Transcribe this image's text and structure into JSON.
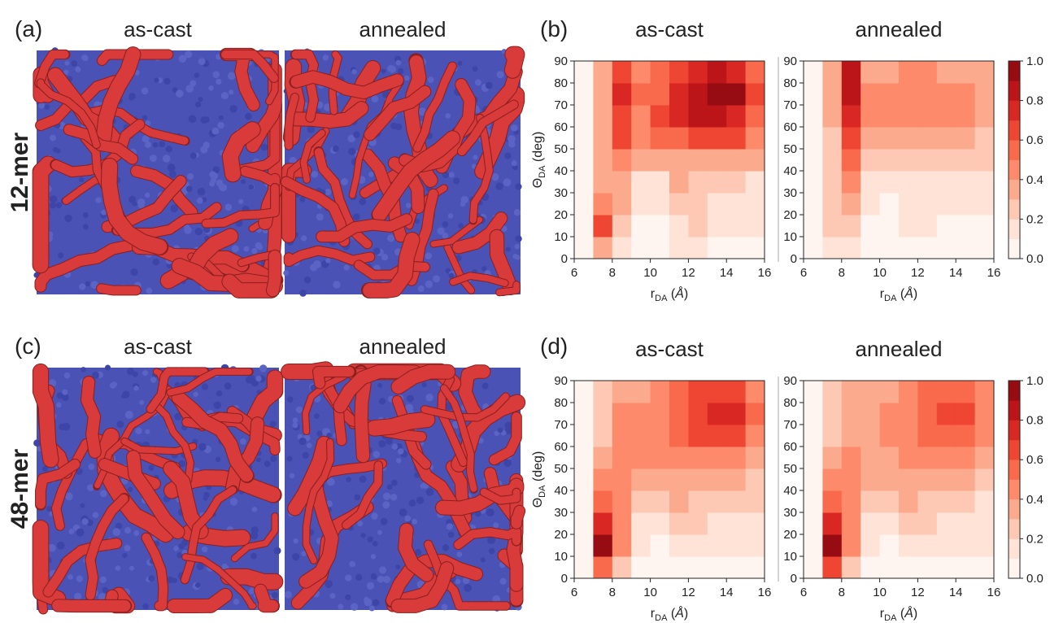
{
  "figure": {
    "panels": [
      {
        "label": "(a)",
        "row_label": "12-mer",
        "titles": [
          "as-cast",
          "annealed"
        ]
      },
      {
        "label": "(c)",
        "row_label": "48-mer",
        "titles": [
          "as-cast",
          "annealed"
        ]
      }
    ],
    "plot_labels": [
      "(b)",
      "(d)"
    ]
  },
  "chart_data": [
    {
      "type": "contour",
      "title": "as-cast",
      "xlabel": {
        "symbol": "r",
        "subscript": "DA",
        "unit": "Å"
      },
      "ylabel": {
        "symbol": "Θ",
        "subscript": "DA",
        "unit": "(deg)"
      },
      "x": [
        6.5,
        7.5,
        8.5,
        9.5,
        10.5,
        11.5,
        12.5,
        13.5,
        14.5,
        15.5
      ],
      "y": [
        5,
        15,
        25,
        35,
        45,
        55,
        65,
        75,
        85
      ],
      "z": [
        [
          0,
          0.3,
          0.1,
          0,
          0,
          0.1,
          0.1,
          0.05,
          0.05,
          0.05
        ],
        [
          0.05,
          0.6,
          0.2,
          0.05,
          0.05,
          0.15,
          0.2,
          0.1,
          0.1,
          0.1
        ],
        [
          0.05,
          0.4,
          0.3,
          0.1,
          0.1,
          0.25,
          0.2,
          0.15,
          0.15,
          0.1
        ],
        [
          0.05,
          0.3,
          0.35,
          0.15,
          0.15,
          0.3,
          0.25,
          0.2,
          0.2,
          0.15
        ],
        [
          0.05,
          0.3,
          0.4,
          0.3,
          0.35,
          0.35,
          0.35,
          0.35,
          0.35,
          0.3
        ],
        [
          0.05,
          0.35,
          0.6,
          0.4,
          0.5,
          0.5,
          0.6,
          0.6,
          0.6,
          0.45
        ],
        [
          0.05,
          0.3,
          0.6,
          0.45,
          0.6,
          0.7,
          0.8,
          0.8,
          0.75,
          0.55
        ],
        [
          0.05,
          0.3,
          0.75,
          0.5,
          0.55,
          0.75,
          0.8,
          0.9,
          0.9,
          0.6
        ],
        [
          0.05,
          0.3,
          0.65,
          0.45,
          0.55,
          0.65,
          0.75,
          0.8,
          0.75,
          0.55
        ]
      ],
      "xlim": [
        6,
        16
      ],
      "ylim": [
        0,
        90
      ],
      "xticks": [
        6,
        8,
        10,
        12,
        14,
        16
      ],
      "yticks": [
        0,
        10,
        20,
        30,
        40,
        50,
        60,
        70,
        80,
        90
      ],
      "levels": [
        0,
        0.1,
        0.2,
        0.3,
        0.4,
        0.5,
        0.6,
        0.7,
        0.8,
        0.9,
        1.0
      ],
      "colors": [
        "#fff5f0",
        "#fee3d6",
        "#fdc9b4",
        "#fcaa8e",
        "#fc8a6b",
        "#f9694c",
        "#ef4533",
        "#d92723",
        "#bb151a",
        "#970b13"
      ]
    },
    {
      "type": "contour",
      "title": "annealed",
      "xlabel": {
        "symbol": "r",
        "subscript": "DA",
        "unit": "Å"
      },
      "x": [
        6.5,
        7.5,
        8.5,
        9.5,
        10.5,
        11.5,
        12.5,
        13.5,
        14.5,
        15.5
      ],
      "y": [
        5,
        15,
        25,
        35,
        45,
        55,
        65,
        75,
        85
      ],
      "z": [
        [
          0,
          0.1,
          0.1,
          0,
          0,
          0,
          0,
          0,
          0,
          0
        ],
        [
          0,
          0.2,
          0.25,
          0.05,
          0,
          0.1,
          0.1,
          0.05,
          0.05,
          0.05
        ],
        [
          0,
          0.25,
          0.35,
          0.1,
          0.05,
          0.15,
          0.1,
          0.1,
          0.1,
          0.1
        ],
        [
          0,
          0.2,
          0.45,
          0.15,
          0.1,
          0.15,
          0.15,
          0.15,
          0.15,
          0.1
        ],
        [
          0,
          0.2,
          0.55,
          0.25,
          0.2,
          0.25,
          0.2,
          0.2,
          0.2,
          0.2
        ],
        [
          0.05,
          0.25,
          0.65,
          0.35,
          0.3,
          0.3,
          0.3,
          0.3,
          0.3,
          0.25
        ],
        [
          0.05,
          0.3,
          0.75,
          0.4,
          0.4,
          0.45,
          0.4,
          0.4,
          0.4,
          0.3
        ],
        [
          0.05,
          0.3,
          0.85,
          0.4,
          0.4,
          0.45,
          0.45,
          0.4,
          0.4,
          0.3
        ],
        [
          0.05,
          0.3,
          0.8,
          0.35,
          0.35,
          0.4,
          0.4,
          0.35,
          0.35,
          0.3
        ]
      ],
      "xlim": [
        6,
        16
      ],
      "ylim": [
        0,
        90
      ],
      "xticks": [
        6,
        8,
        10,
        12,
        14,
        16
      ],
      "yticks": [
        0,
        10,
        20,
        30,
        40,
        50,
        60,
        70,
        80,
        90
      ],
      "levels": [
        0,
        0.1,
        0.2,
        0.3,
        0.4,
        0.5,
        0.6,
        0.7,
        0.8,
        0.9,
        1.0
      ],
      "colors": [
        "#fff5f0",
        "#fee3d6",
        "#fdc9b4",
        "#fcaa8e",
        "#fc8a6b",
        "#f9694c",
        "#ef4533",
        "#d92723",
        "#bb151a",
        "#970b13"
      ],
      "colorbar_ticks": [
        {
          "value": 0,
          "label": "0.0"
        },
        0.2,
        0.4,
        0.6,
        0.8,
        {
          "value": 1,
          "label": "1.0"
        }
      ]
    },
    {
      "type": "contour",
      "title": "as-cast",
      "xlabel": {
        "symbol": "r",
        "subscript": "DA",
        "unit": "Å"
      },
      "ylabel": {
        "symbol": "Θ",
        "subscript": "DA",
        "unit": "(deg)"
      },
      "x": [
        6.5,
        7.5,
        8.5,
        9.5,
        10.5,
        11.5,
        12.5,
        13.5,
        14.5,
        15.5
      ],
      "y": [
        5,
        15,
        25,
        35,
        45,
        55,
        65,
        75,
        85
      ],
      "z": [
        [
          0,
          0.5,
          0.2,
          0,
          0,
          0.05,
          0.05,
          0.05,
          0.05,
          0.05
        ],
        [
          0.05,
          0.9,
          0.4,
          0.1,
          0.05,
          0.15,
          0.15,
          0.1,
          0.1,
          0.1
        ],
        [
          0.05,
          0.7,
          0.45,
          0.15,
          0.1,
          0.25,
          0.2,
          0.15,
          0.15,
          0.1
        ],
        [
          0.05,
          0.5,
          0.45,
          0.25,
          0.2,
          0.3,
          0.25,
          0.2,
          0.2,
          0.2
        ],
        [
          0.05,
          0.4,
          0.45,
          0.35,
          0.3,
          0.35,
          0.3,
          0.3,
          0.3,
          0.25
        ],
        [
          0.05,
          0.3,
          0.45,
          0.4,
          0.4,
          0.45,
          0.45,
          0.45,
          0.45,
          0.35
        ],
        [
          0.05,
          0.25,
          0.4,
          0.4,
          0.45,
          0.5,
          0.6,
          0.6,
          0.6,
          0.45
        ],
        [
          0.05,
          0.2,
          0.4,
          0.4,
          0.45,
          0.5,
          0.65,
          0.7,
          0.7,
          0.5
        ],
        [
          0.05,
          0.2,
          0.35,
          0.35,
          0.4,
          0.5,
          0.6,
          0.65,
          0.6,
          0.45
        ]
      ],
      "xlim": [
        6,
        16
      ],
      "ylim": [
        0,
        90
      ],
      "xticks": [
        6,
        8,
        10,
        12,
        14,
        16
      ],
      "yticks": [
        0,
        10,
        20,
        30,
        40,
        50,
        60,
        70,
        80,
        90
      ],
      "levels": [
        0,
        0.1,
        0.2,
        0.3,
        0.4,
        0.5,
        0.6,
        0.7,
        0.8,
        0.9,
        1.0
      ],
      "colors": [
        "#fff5f0",
        "#fee3d6",
        "#fdc9b4",
        "#fcaa8e",
        "#fc8a6b",
        "#f9694c",
        "#ef4533",
        "#d92723",
        "#bb151a",
        "#970b13"
      ]
    },
    {
      "type": "contour",
      "title": "annealed",
      "xlabel": {
        "symbol": "r",
        "subscript": "DA",
        "unit": "Å"
      },
      "x": [
        6.5,
        7.5,
        8.5,
        9.5,
        10.5,
        11.5,
        12.5,
        13.5,
        14.5,
        15.5
      ],
      "y": [
        5,
        15,
        25,
        35,
        45,
        55,
        65,
        75,
        85
      ],
      "z": [
        [
          0,
          0.6,
          0.2,
          0,
          0,
          0.05,
          0.05,
          0.05,
          0.05,
          0.05
        ],
        [
          0.05,
          0.95,
          0.4,
          0.1,
          0.05,
          0.15,
          0.15,
          0.1,
          0.1,
          0.1
        ],
        [
          0.05,
          0.75,
          0.45,
          0.15,
          0.1,
          0.25,
          0.2,
          0.15,
          0.15,
          0.1
        ],
        [
          0.05,
          0.55,
          0.45,
          0.25,
          0.2,
          0.3,
          0.25,
          0.2,
          0.2,
          0.15
        ],
        [
          0.05,
          0.4,
          0.45,
          0.3,
          0.3,
          0.35,
          0.3,
          0.3,
          0.3,
          0.25
        ],
        [
          0.05,
          0.3,
          0.4,
          0.35,
          0.35,
          0.4,
          0.4,
          0.4,
          0.4,
          0.3
        ],
        [
          0.05,
          0.25,
          0.35,
          0.35,
          0.4,
          0.45,
          0.5,
          0.55,
          0.5,
          0.4
        ],
        [
          0.05,
          0.2,
          0.35,
          0.35,
          0.4,
          0.45,
          0.55,
          0.6,
          0.6,
          0.4
        ],
        [
          0.05,
          0.2,
          0.35,
          0.35,
          0.35,
          0.45,
          0.5,
          0.55,
          0.5,
          0.4
        ]
      ],
      "xlim": [
        6,
        16
      ],
      "ylim": [
        0,
        90
      ],
      "xticks": [
        6,
        8,
        10,
        12,
        14,
        16
      ],
      "yticks": [
        0,
        10,
        20,
        30,
        40,
        50,
        60,
        70,
        80,
        90
      ],
      "levels": [
        0,
        0.1,
        0.2,
        0.3,
        0.4,
        0.5,
        0.6,
        0.7,
        0.8,
        0.9,
        1.0
      ],
      "colors": [
        "#fff5f0",
        "#fee3d6",
        "#fdc9b4",
        "#fcaa8e",
        "#fc8a6b",
        "#f9694c",
        "#ef4533",
        "#d92723",
        "#bb151a",
        "#970b13"
      ],
      "colorbar_ticks": [
        {
          "value": 0,
          "label": "0.0"
        },
        0.2,
        0.4,
        0.6,
        0.8,
        {
          "value": 1,
          "label": "1.0"
        }
      ]
    }
  ]
}
